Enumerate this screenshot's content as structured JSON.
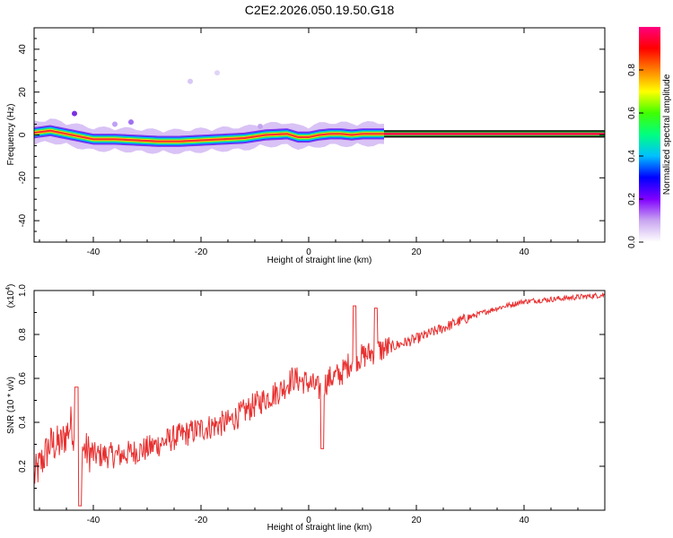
{
  "title": "C2E2.2026.050.19.50.G18",
  "chart_data": [
    {
      "type": "heatmap",
      "xlabel": "Height of straight line (km)",
      "ylabel": "Frequency (Hz)",
      "xlim": [
        -51,
        55
      ],
      "ylim": [
        -50,
        50
      ],
      "xticks": [
        -40,
        -20,
        0,
        20,
        40
      ],
      "yticks": [
        -40,
        -20,
        0,
        20,
        40
      ],
      "ridge": {
        "x": [
          -51,
          -48,
          -46,
          -44,
          -42,
          -40,
          -36,
          -32,
          -28,
          -24,
          -20,
          -16,
          -12,
          -8,
          -4,
          -2,
          0,
          2,
          4,
          6,
          8,
          10,
          12,
          14,
          20,
          30,
          40,
          50,
          55
        ],
        "freq": [
          1,
          2,
          1,
          0,
          -1,
          -2,
          -2,
          -2.5,
          -3,
          -3,
          -2.5,
          -2,
          -1.5,
          0,
          0.5,
          -1,
          -1,
          0,
          0.5,
          0.5,
          0,
          0.5,
          0.5,
          0.5,
          0.5,
          0.5,
          0.5,
          0.5,
          0.5
        ]
      },
      "colorbar": {
        "label": "Normalized spectral amplitude",
        "ticks": [
          "0.0",
          "0.2",
          "0.4",
          "0.6",
          "0.8"
        ],
        "range": [
          0,
          1
        ],
        "colors": [
          "#ffffff",
          "#c9a6f0",
          "#8000ff",
          "#0000ff",
          "#00c0ff",
          "#00ff80",
          "#40ff00",
          "#ffff00",
          "#ff8000",
          "#ff0000",
          "#ff0080"
        ]
      }
    },
    {
      "type": "line",
      "xlabel": "Height of straight line (km)",
      "ylabel": "SNR (10 * v/v)",
      "scale_label": "(x10",
      "scale_exp": "4",
      "scale_close": ")",
      "xlim": [
        -51,
        55
      ],
      "ylim": [
        0,
        1.0
      ],
      "xticks": [
        -40,
        -20,
        0,
        20,
        40
      ],
      "yticks": [
        0.2,
        0.4,
        0.6,
        0.8,
        1.0
      ],
      "color": "#e83030",
      "envelope": {
        "x": [
          -51,
          -48,
          -46,
          -44,
          -43,
          -42,
          -40,
          -35,
          -30,
          -25,
          -20,
          -15,
          -10,
          -5,
          -3,
          0,
          2,
          4,
          6,
          8,
          10,
          12,
          15,
          20,
          25,
          30,
          35,
          40,
          45,
          50,
          55
        ],
        "y": [
          0.15,
          0.3,
          0.3,
          0.4,
          0.2,
          0.28,
          0.25,
          0.25,
          0.28,
          0.33,
          0.37,
          0.4,
          0.48,
          0.55,
          0.6,
          0.58,
          0.55,
          0.6,
          0.62,
          0.68,
          0.7,
          0.72,
          0.74,
          0.78,
          0.83,
          0.88,
          0.92,
          0.95,
          0.96,
          0.97,
          0.98
        ]
      }
    }
  ]
}
